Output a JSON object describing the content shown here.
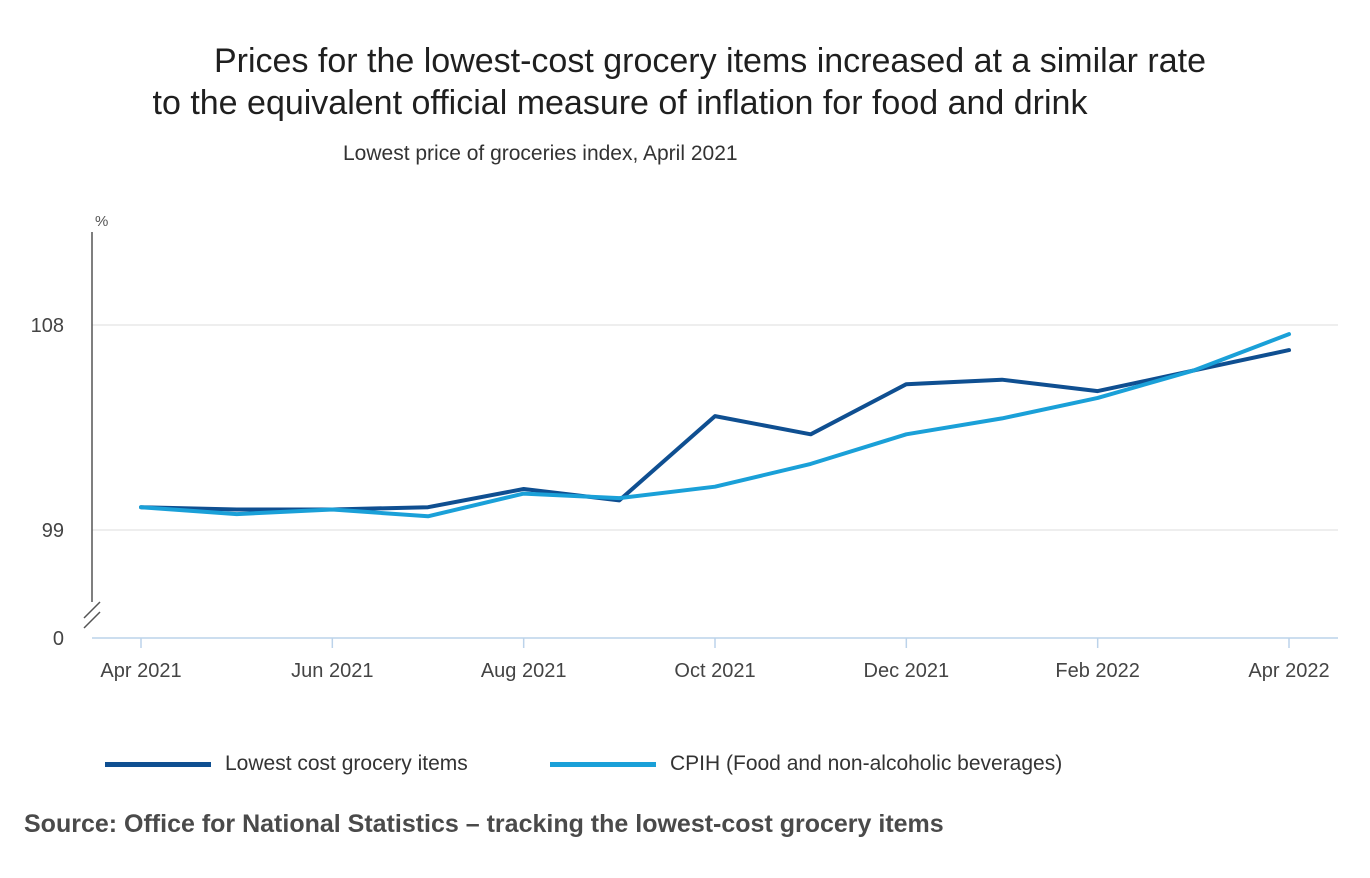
{
  "title_line1": "Prices for the lowest-cost grocery items increased at a similar rate",
  "title_line2": "to the equivalent official measure of inflation for food and drink",
  "subtitle": "Lowest price of groceries index, April 2021",
  "source": "Source: Office for National Statistics – tracking the lowest-cost grocery items",
  "colors": {
    "dark": "#0f4f91",
    "light": "#1aa0d8",
    "grid": "#dddddd",
    "axis": "#bcd3ea"
  },
  "chart_data": {
    "type": "line",
    "ylabel": "%",
    "y_ticks": [
      "108",
      "99",
      "0"
    ],
    "y_tick_values": [
      108,
      99,
      0
    ],
    "y_axis_break": true,
    "x": [
      "Apr 2021",
      "May 2021",
      "Jun 2021",
      "Jul 2021",
      "Aug 2021",
      "Sep 2021",
      "Oct 2021",
      "Nov 2021",
      "Dec 2021",
      "Jan 2022",
      "Feb 2022",
      "Mar 2022",
      "Apr 2022"
    ],
    "x_tick_labels": [
      "Apr 2021",
      "Jun 2021",
      "Aug 2021",
      "Oct 2021",
      "Dec 2021",
      "Feb 2022",
      "Apr 2022"
    ],
    "series": [
      {
        "name": "Lowest cost grocery items",
        "values": [
          100.0,
          99.9,
          99.9,
          100.0,
          100.8,
          100.3,
          104.0,
          103.2,
          105.4,
          105.6,
          105.1,
          106.0,
          106.9
        ]
      },
      {
        "name": "CPIH (Food and non-alcoholic beverages)",
        "values": [
          100.0,
          99.7,
          99.9,
          99.6,
          100.6,
          100.4,
          100.9,
          101.9,
          103.2,
          103.9,
          104.8,
          106.0,
          107.6
        ]
      }
    ],
    "grid": true,
    "legend_position": "bottom"
  }
}
